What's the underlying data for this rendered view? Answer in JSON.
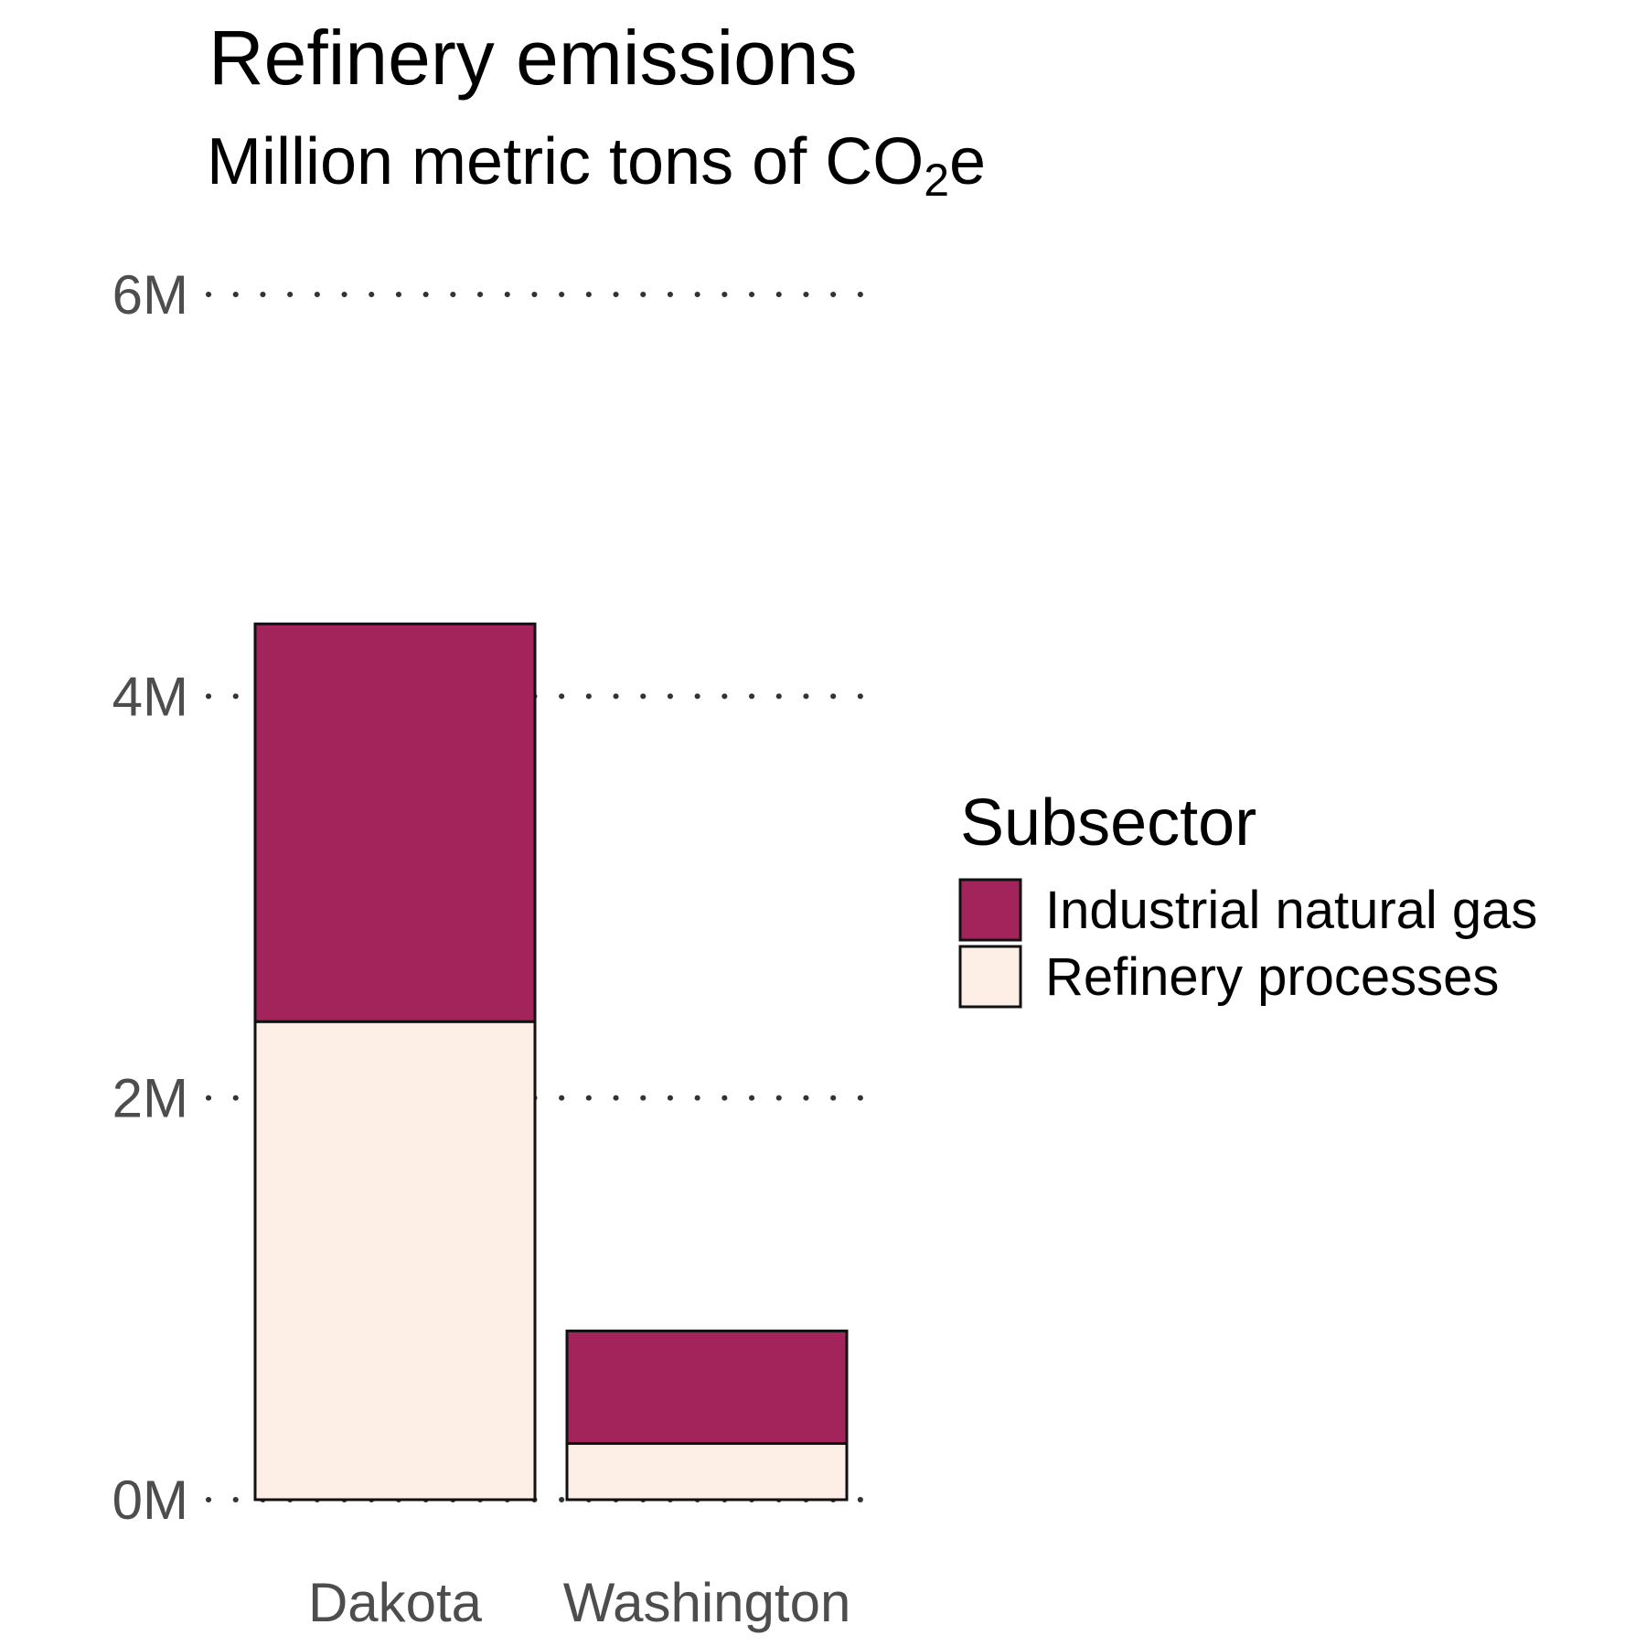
{
  "chart_data": {
    "type": "bar",
    "stacked": true,
    "title": "Refinery emissions",
    "subtitle": {
      "prefix": "Million metric tons of CO",
      "subscript": "2",
      "suffix": "e"
    },
    "categories": [
      "Dakota",
      "Washington"
    ],
    "series": [
      {
        "name": "Refinery processes",
        "color": "#fdeee6",
        "values": [
          2.38,
          0.28
        ]
      },
      {
        "name": "Industrial natural gas",
        "color": "#a3245b",
        "values": [
          1.98,
          0.56
        ]
      }
    ],
    "units": "M",
    "ylim": [
      0,
      6
    ],
    "yticks": [
      0,
      2,
      4,
      6
    ],
    "ytick_labels": [
      "0M",
      "2M",
      "4M",
      "6M"
    ],
    "grid": "horizontal dotted",
    "legend": {
      "title": "Subsector",
      "placement": "right",
      "entries": [
        {
          "label": "Industrial natural gas",
          "color": "#a3245b"
        },
        {
          "label": "Refinery processes",
          "color": "#fdeee6"
        }
      ]
    }
  }
}
